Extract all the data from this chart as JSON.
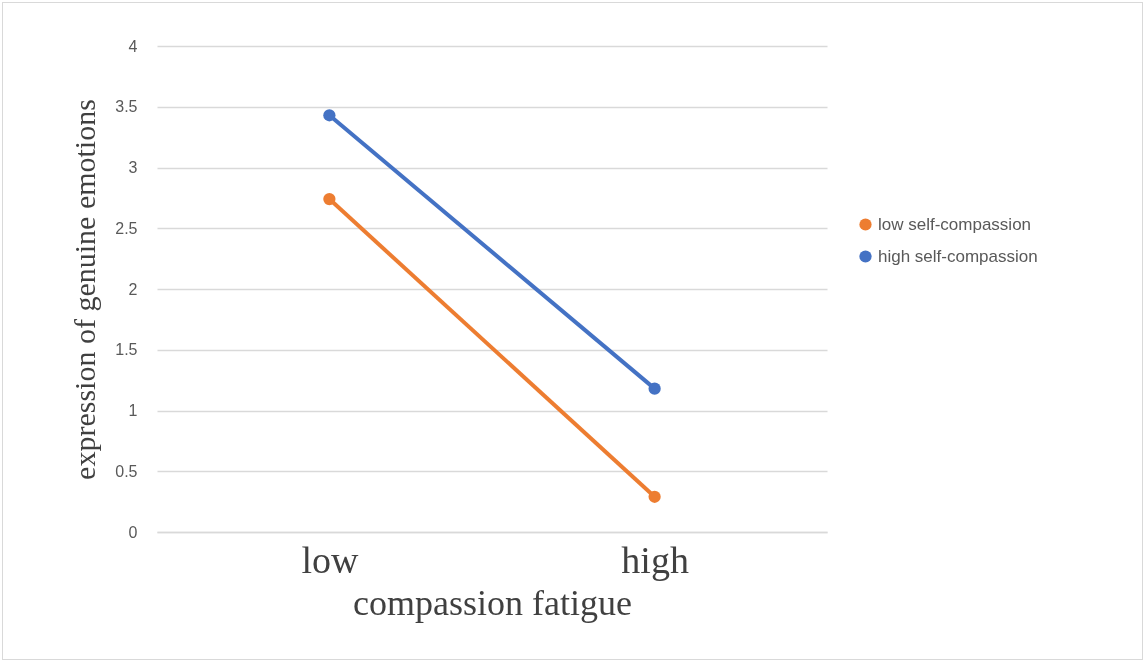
{
  "chart_data": {
    "type": "line",
    "xlabel": "compassion fatigue",
    "ylabel": "expression of genuine emotions",
    "categories": [
      "low",
      "high"
    ],
    "series": [
      {
        "name": "low self-compassion",
        "color": "#ed7d31",
        "values": [
          2.74,
          0.29
        ]
      },
      {
        "name": "high self-compassion",
        "color": "#4472c4",
        "values": [
          3.43,
          1.18
        ]
      }
    ],
    "ylim": [
      0,
      4
    ],
    "yticks": [
      0,
      0.5,
      1,
      1.5,
      2,
      2.5,
      3,
      3.5,
      4
    ],
    "grid": "y",
    "legend": "right",
    "marker": "circle",
    "line_style": "solid"
  }
}
